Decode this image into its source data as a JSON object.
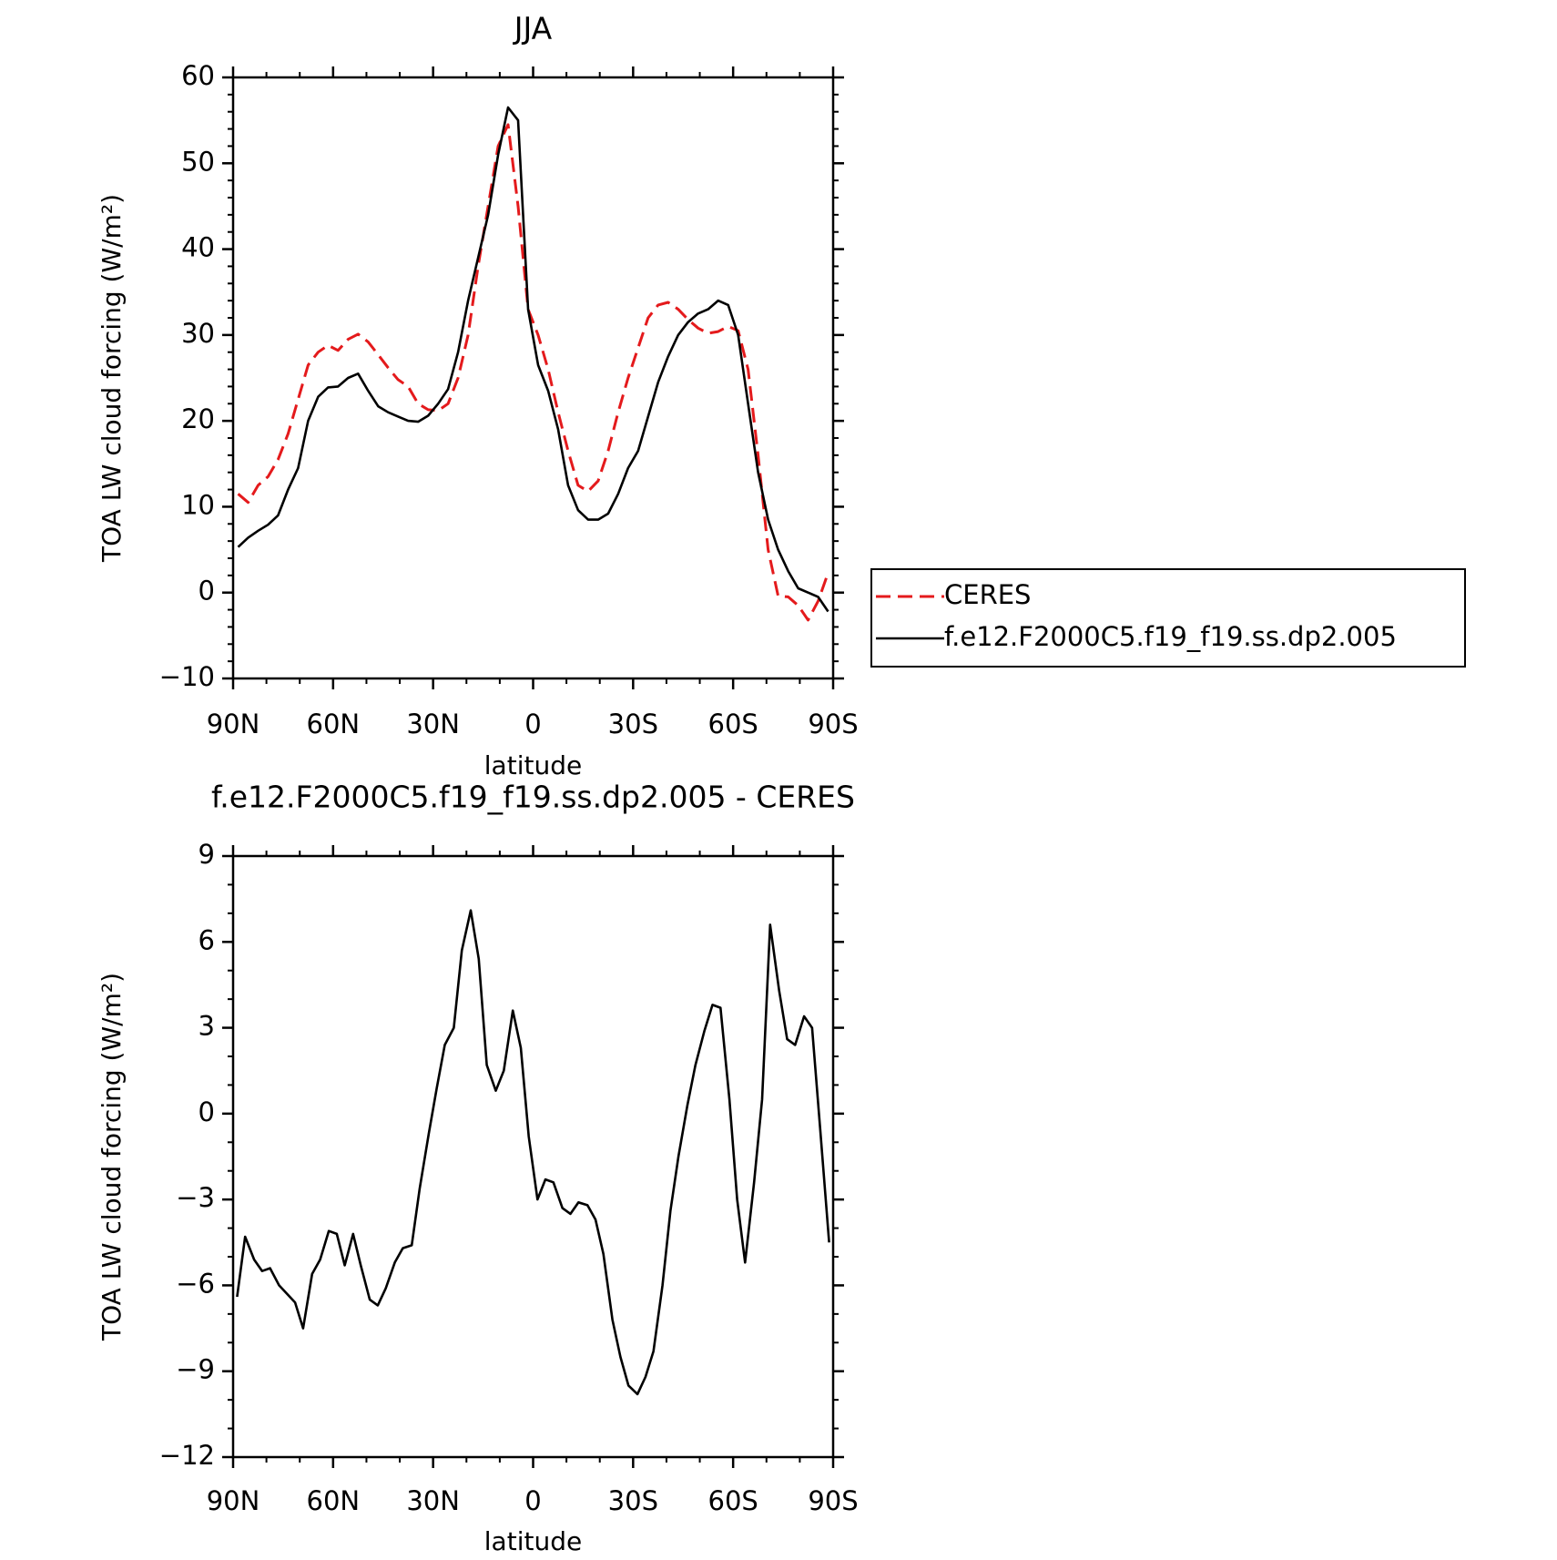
{
  "chart_data": [
    {
      "type": "line",
      "title": "JJA",
      "x_label": "latitude",
      "y_label": "TOA LW cloud forcing (W/m²)",
      "x": [
        88.5,
        85.5,
        82.5,
        79.5,
        76.5,
        73.5,
        70.5,
        67.5,
        64.5,
        61.5,
        58.5,
        55.5,
        52.5,
        49.5,
        46.5,
        43.5,
        40.5,
        37.5,
        34.5,
        31.5,
        28.5,
        25.5,
        22.5,
        19.5,
        16.5,
        13.5,
        10.5,
        7.5,
        4.5,
        1.5,
        -1.5,
        -4.5,
        -7.5,
        -10.5,
        -13.5,
        -16.5,
        -19.5,
        -22.5,
        -25.5,
        -28.5,
        -31.5,
        -34.5,
        -37.5,
        -40.5,
        -43.5,
        -46.5,
        -49.5,
        -52.5,
        -55.5,
        -58.5,
        -61.5,
        -64.5,
        -67.5,
        -70.5,
        -73.5,
        -76.5,
        -79.5,
        -82.5,
        -85.5,
        -88.5
      ],
      "series": [
        {
          "name": "CERES",
          "color": "#e41a1c",
          "dash": true,
          "values": [
            11.5,
            10.5,
            12.5,
            13.5,
            15.5,
            18.5,
            22.5,
            26.5,
            28,
            28.8,
            28.2,
            29.5,
            30.1,
            29.2,
            27.7,
            26.2,
            24.8,
            24,
            22,
            21.3,
            21.2,
            22,
            25,
            30,
            38,
            45,
            52,
            54.5,
            45,
            33,
            30,
            26,
            21,
            16.5,
            12.5,
            11.8,
            13,
            16.5,
            21,
            25,
            28.5,
            32,
            33.5,
            33.8,
            33,
            31.8,
            30.8,
            30.2,
            30.4,
            31,
            30.5,
            26,
            16,
            5,
            -0.4,
            -0.5,
            -1.5,
            -3.2,
            -1,
            2.3
          ]
        },
        {
          "name": "f.e12.F2000C5.f19_f19.ss.dp2.005",
          "color": "#000000",
          "dash": false,
          "values": [
            5.3,
            6.4,
            7.2,
            7.9,
            9,
            12,
            14.5,
            20,
            22.8,
            23.9,
            24,
            25,
            25.5,
            23.5,
            21.7,
            21,
            20.5,
            20,
            19.9,
            20.6,
            22,
            23.7,
            28,
            34,
            39,
            44,
            51,
            56.5,
            55,
            33,
            26.5,
            23.5,
            19,
            12.5,
            9.6,
            8.5,
            8.5,
            9.2,
            11.5,
            14.5,
            16.5,
            20.5,
            24.5,
            27.5,
            30,
            31.5,
            32.5,
            33,
            34,
            33.5,
            30,
            22,
            14,
            8.5,
            5,
            2.5,
            0.5,
            0,
            -0.5,
            -2.2
          ]
        }
      ],
      "xlim": [
        90,
        -90
      ],
      "xticks": [
        {
          "value": 90,
          "label": "90N"
        },
        {
          "value": 60,
          "label": "60N"
        },
        {
          "value": 30,
          "label": "30N"
        },
        0,
        {
          "value": -30,
          "label": "30S"
        },
        {
          "value": -60,
          "label": "60S"
        },
        {
          "value": -90,
          "label": "90S"
        }
      ],
      "ylim": [
        -10,
        60
      ],
      "yticks": [
        {
          "value": -10,
          "label": "−10"
        },
        0,
        10,
        20,
        30,
        40,
        50,
        60
      ],
      "minor_ticks": {
        "x": 3,
        "y": 5
      },
      "legend": "right"
    },
    {
      "type": "line",
      "title": "f.e12.F2000C5.f19_f19.ss.dp2.005 - CERES",
      "x_label": "latitude",
      "y_label": "TOA LW cloud forcing (W/m²)",
      "x": [
        88.8,
        86.4,
        83.7,
        81.3,
        78.9,
        76.2,
        71.4,
        69,
        66.3,
        63.9,
        61.3,
        58.9,
        56.5,
        54,
        51.7,
        49,
        46.6,
        44.2,
        41.5,
        39.1,
        36.4,
        34,
        31.3,
        28.9,
        26.5,
        23.8,
        21.4,
        18.7,
        16.3,
        13.9,
        11.2,
        8.8,
        6.1,
        3.7,
        1.3,
        -1.3,
        -3.7,
        -6.1,
        -8.8,
        -11.2,
        -13.6,
        -16.3,
        -18.7,
        -21.1,
        -23.8,
        -26.2,
        -28.6,
        -31.3,
        -33.7,
        -36.1,
        -38.8,
        -41.2,
        -43.6,
        -46.3,
        -48.7,
        -51.4,
        -53.8,
        -56.2,
        -58.9,
        -61.2,
        -63.6,
        -66.3,
        -68.7,
        -71.1,
        -73.8,
        -76.2,
        -78.6,
        -81.3,
        -83.7,
        -86.1,
        -88.8
      ],
      "values": [
        -6.4,
        -4.3,
        -5.1,
        -5.5,
        -5.4,
        -6,
        -6.6,
        -7.5,
        -5.6,
        -5.1,
        -4.1,
        -4.2,
        -5.3,
        -4.2,
        -5.3,
        -6.5,
        -6.7,
        -6.1,
        -5.2,
        -4.7,
        -4.6,
        -2.6,
        -0.7,
        0.9,
        2.4,
        3,
        5.7,
        7.1,
        5.4,
        1.7,
        0.8,
        1.5,
        3.6,
        2.3,
        -0.8,
        -3,
        -2.3,
        -2.4,
        -3.3,
        -3.5,
        -3.1,
        -3.2,
        -3.7,
        -4.9,
        -7.2,
        -8.5,
        -9.5,
        -9.8,
        -9.2,
        -8.3,
        -6,
        -3.4,
        -1.5,
        0.3,
        1.7,
        2.9,
        3.8,
        3.7,
        0.5,
        -3,
        -5.2,
        -2.4,
        0.5,
        6.6,
        4.3,
        2.6,
        2.4,
        3.4,
        3,
        -0.5,
        -4.5
      ],
      "color": "#000000",
      "xlim": [
        90,
        -90
      ],
      "xticks": [
        {
          "value": 90,
          "label": "90N"
        },
        {
          "value": 60,
          "label": "60N"
        },
        {
          "value": 30,
          "label": "30N"
        },
        0,
        {
          "value": -30,
          "label": "30S"
        },
        {
          "value": -60,
          "label": "60S"
        },
        {
          "value": -90,
          "label": "90S"
        }
      ],
      "ylim": [
        -12,
        9
      ],
      "yticks": [
        {
          "value": -12,
          "label": "−12"
        },
        {
          "value": -9,
          "label": "−9"
        },
        {
          "value": -6,
          "label": "−6"
        },
        {
          "value": -3,
          "label": "−3"
        },
        0,
        3,
        6,
        9
      ],
      "minor_ticks": {
        "x": 3,
        "y": 3
      }
    }
  ]
}
